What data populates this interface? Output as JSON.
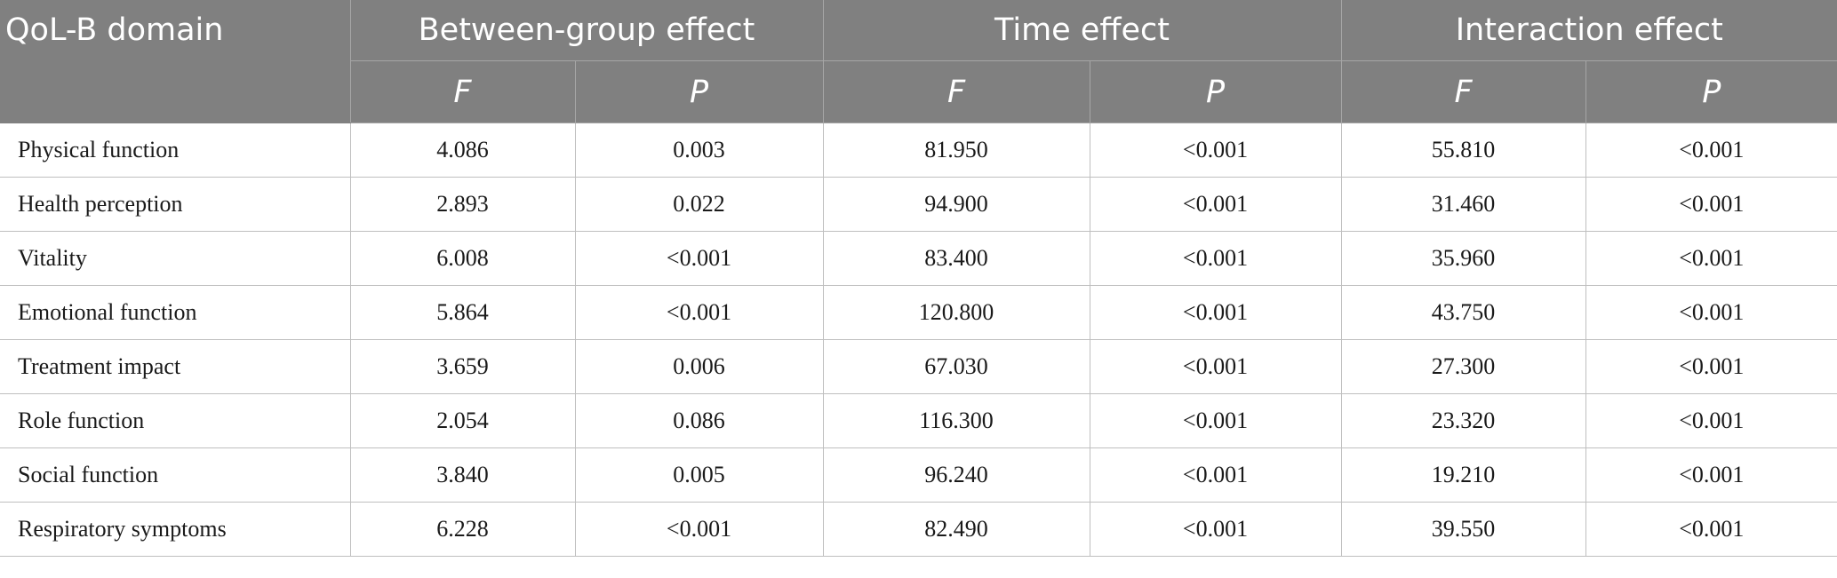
{
  "table": {
    "header": {
      "domain": "QoL-B domain",
      "groups": [
        "Between-group effect",
        "Time effect",
        "Interaction effect"
      ],
      "sub": [
        "F",
        "P",
        "F",
        "P",
        "F",
        "P"
      ]
    },
    "rows": [
      {
        "domain": "Physical function",
        "values": [
          "4.086",
          "0.003",
          "81.950",
          "<0.001",
          "55.810",
          "<0.001"
        ]
      },
      {
        "domain": "Health perception",
        "values": [
          "2.893",
          "0.022",
          "94.900",
          "<0.001",
          "31.460",
          "<0.001"
        ]
      },
      {
        "domain": "Vitality",
        "values": [
          "6.008",
          "<0.001",
          "83.400",
          "<0.001",
          "35.960",
          "<0.001"
        ]
      },
      {
        "domain": "Emotional function",
        "values": [
          "5.864",
          "<0.001",
          "120.800",
          "<0.001",
          "43.750",
          "<0.001"
        ]
      },
      {
        "domain": "Treatment impact",
        "values": [
          "3.659",
          "0.006",
          "67.030",
          "<0.001",
          "27.300",
          "<0.001"
        ]
      },
      {
        "domain": "Role function",
        "values": [
          "2.054",
          "0.086",
          "116.300",
          "<0.001",
          "23.320",
          "<0.001"
        ]
      },
      {
        "domain": "Social function",
        "values": [
          "3.840",
          "0.005",
          "96.240",
          "<0.001",
          "19.210",
          "<0.001"
        ]
      },
      {
        "domain": "Respiratory symptoms",
        "values": [
          "6.228",
          "<0.001",
          "82.490",
          "<0.001",
          "39.550",
          "<0.001"
        ]
      }
    ]
  }
}
